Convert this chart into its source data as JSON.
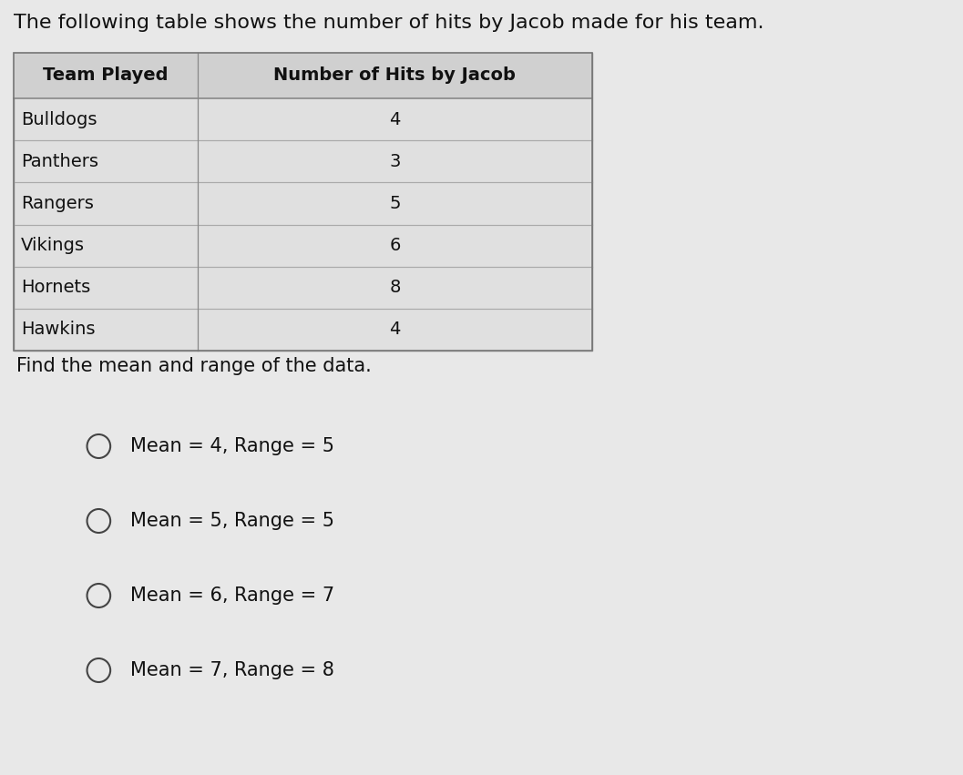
{
  "title": "The following table shows the number of hits by Jacob made for his team.",
  "table_header": [
    "Team Played",
    "Number of Hits by Jacob"
  ],
  "table_rows": [
    [
      "Bulldogs",
      "4"
    ],
    [
      "Panthers",
      "3"
    ],
    [
      "Rangers",
      "5"
    ],
    [
      "Vikings",
      "6"
    ],
    [
      "Hornets",
      "8"
    ],
    [
      "Hawkins",
      "4"
    ]
  ],
  "subtitle": "Find the mean and range of the data.",
  "options": [
    "Mean = 4, Range = 5",
    "Mean = 5, Range = 5",
    "Mean = 6, Range = 7",
    "Mean = 7, Range = 8"
  ],
  "bg_color": "#e8e8e8",
  "table_bg": "#e0e0e0",
  "header_bg": "#d0d0d0",
  "title_fontsize": 16,
  "subtitle_fontsize": 15,
  "option_fontsize": 15,
  "table_fontsize": 14
}
